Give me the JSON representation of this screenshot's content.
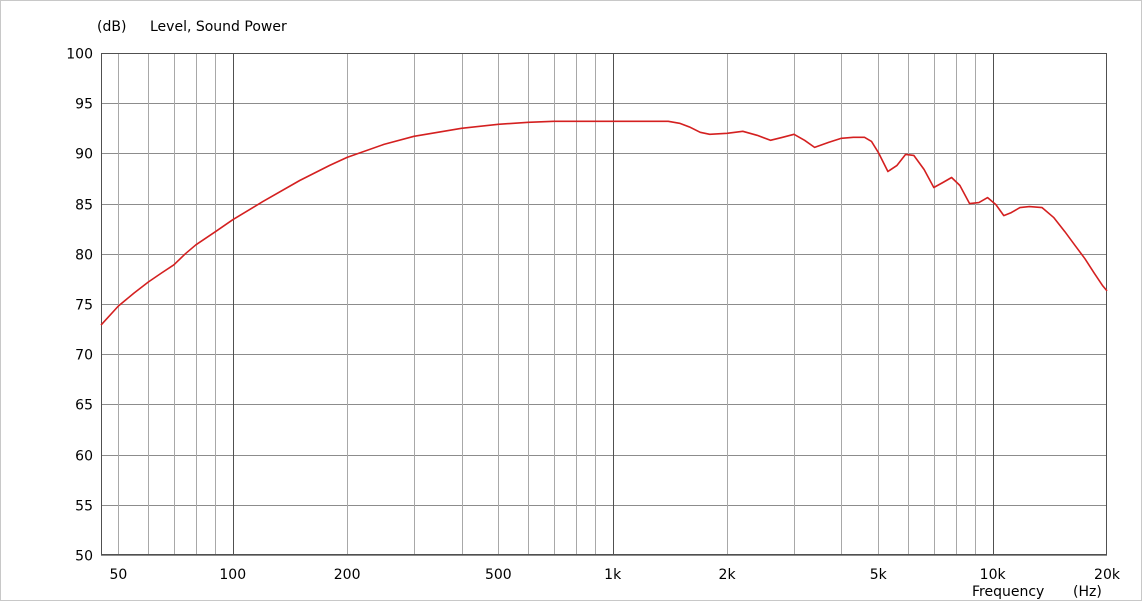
{
  "chart_data": {
    "type": "line",
    "title": "Level, Sound Power",
    "ylabel": "(dB)",
    "xlabel": "Frequency",
    "xlabel_unit": "(Hz)",
    "x_scale": "log",
    "xlim": [
      45,
      20000
    ],
    "ylim": [
      50,
      100
    ],
    "grid": true,
    "y_ticks": [
      50,
      55,
      60,
      65,
      70,
      75,
      80,
      85,
      90,
      95,
      100
    ],
    "x_tick_labels": [
      {
        "value": 50,
        "label": "50"
      },
      {
        "value": 100,
        "label": "100"
      },
      {
        "value": 200,
        "label": "200"
      },
      {
        "value": 500,
        "label": "500"
      },
      {
        "value": 1000,
        "label": "1k"
      },
      {
        "value": 2000,
        "label": "2k"
      },
      {
        "value": 5000,
        "label": "5k"
      },
      {
        "value": 10000,
        "label": "10k"
      },
      {
        "value": 20000,
        "label": "20k"
      }
    ],
    "x_major_gridlines": [
      100,
      1000,
      10000
    ],
    "x_minor_gridlines": [
      50,
      60,
      70,
      80,
      90,
      200,
      300,
      400,
      500,
      600,
      700,
      800,
      900,
      2000,
      3000,
      4000,
      5000,
      6000,
      7000,
      8000,
      9000
    ],
    "series": [
      {
        "name": "Sound Power",
        "color": "#d42020",
        "x": [
          45,
          50,
          55,
          60,
          65,
          70,
          75,
          80,
          90,
          100,
          120,
          150,
          180,
          200,
          250,
          300,
          400,
          500,
          600,
          700,
          800,
          1000,
          1200,
          1400,
          1500,
          1600,
          1700,
          1800,
          2000,
          2200,
          2400,
          2600,
          2800,
          3000,
          3200,
          3400,
          3700,
          4000,
          4300,
          4600,
          4800,
          5000,
          5300,
          5600,
          5900,
          6200,
          6600,
          7000,
          7400,
          7800,
          8200,
          8700,
          9200,
          9700,
          10200,
          10700,
          11200,
          11800,
          12500,
          13500,
          14500,
          15500,
          16500,
          17500,
          18500,
          19500,
          20000
        ],
        "y": [
          72.9,
          74.8,
          76.1,
          77.2,
          78.1,
          78.9,
          80.0,
          80.9,
          82.2,
          83.4,
          85.2,
          87.3,
          88.8,
          89.6,
          90.9,
          91.7,
          92.5,
          92.9,
          93.1,
          93.2,
          93.2,
          93.2,
          93.2,
          93.2,
          93.0,
          92.6,
          92.1,
          91.9,
          92.0,
          92.2,
          91.8,
          91.3,
          91.6,
          91.9,
          91.3,
          90.6,
          91.1,
          91.5,
          91.6,
          91.6,
          91.2,
          90.1,
          88.2,
          88.8,
          89.9,
          89.8,
          88.4,
          86.6,
          87.1,
          87.6,
          86.8,
          85.0,
          85.1,
          85.6,
          84.9,
          83.8,
          84.1,
          84.6,
          84.7,
          84.6,
          83.6,
          82.2,
          80.8,
          79.5,
          78.1,
          76.8,
          76.3
        ]
      }
    ]
  }
}
